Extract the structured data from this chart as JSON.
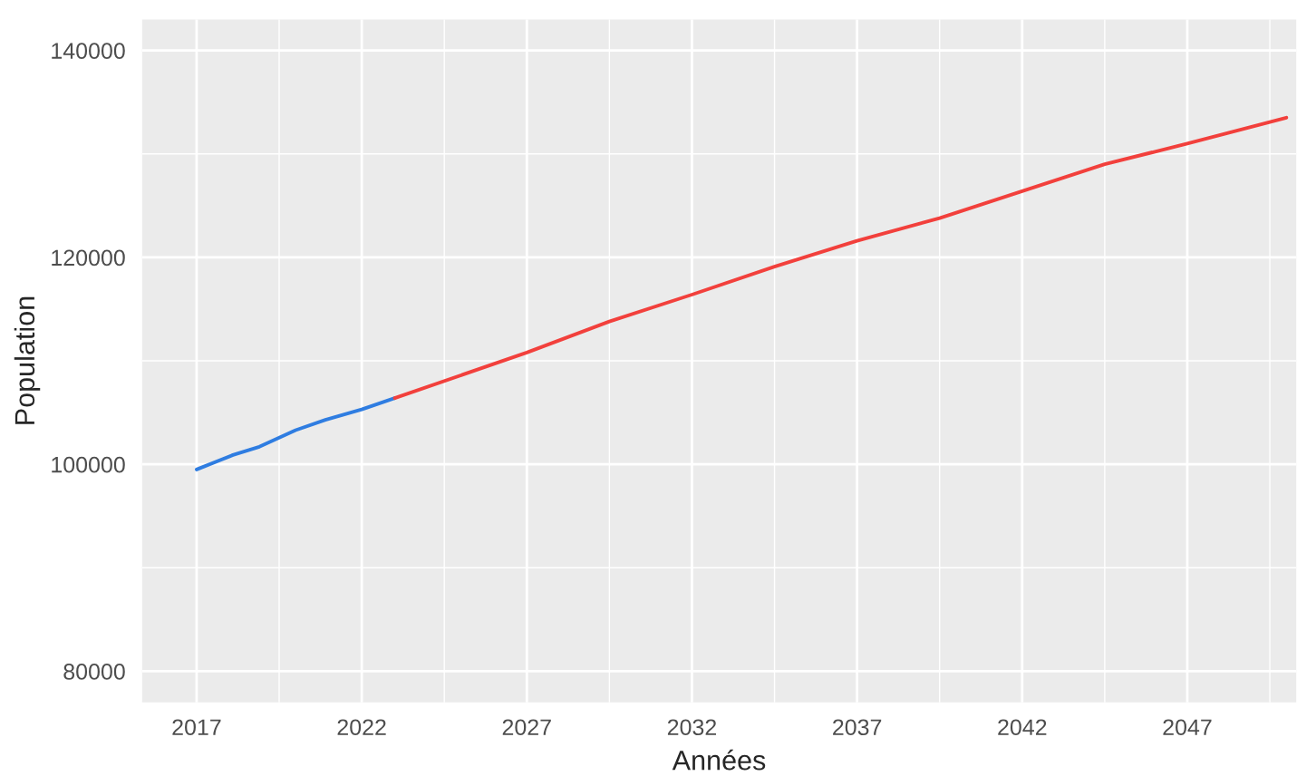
{
  "chart_data": {
    "type": "line",
    "xlabel": "Années",
    "ylabel": "Population",
    "series": [
      {
        "color": "#2f7de1",
        "x": [
          2017,
          2018.1,
          2018.9,
          2020.0,
          2020.9,
          2022,
          2023
        ],
        "values": [
          99500,
          100900,
          101700,
          103300,
          104300,
          105300,
          106400
        ]
      },
      {
        "color": "#f2403c",
        "x": [
          2023,
          2027,
          2029.5,
          2032,
          2034.5,
          2037,
          2039.5,
          2042,
          2044.5,
          2047,
          2050
        ],
        "values": [
          106400,
          110800,
          113800,
          116400,
          119100,
          121600,
          123800,
          126400,
          129000,
          131000,
          133500
        ]
      }
    ],
    "xlim": [
      2015.35,
      2050.3
    ],
    "ylim": [
      77000,
      143000
    ],
    "xticks": [
      2017,
      2022,
      2027,
      2032,
      2037,
      2042,
      2047
    ],
    "yticks": [
      80000,
      100000,
      120000,
      140000
    ],
    "grid": true
  }
}
